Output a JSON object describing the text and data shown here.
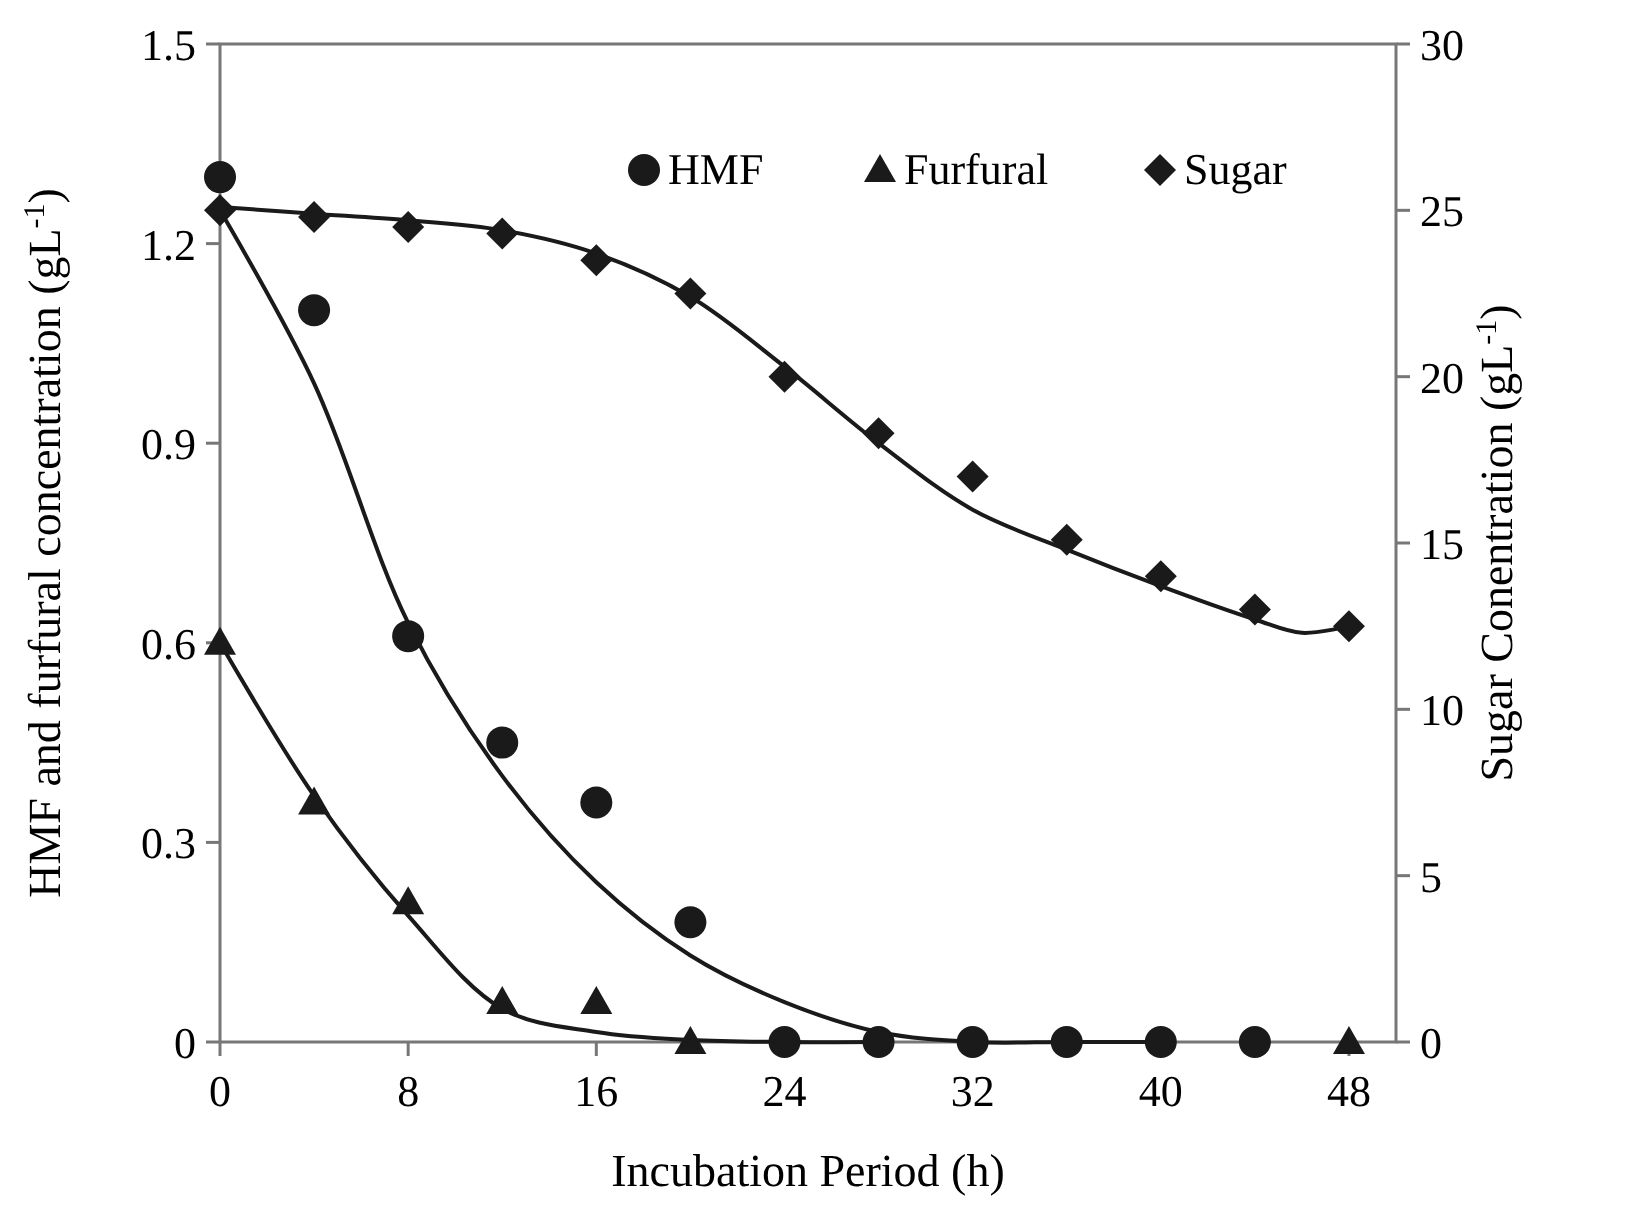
{
  "chart_data": {
    "type": "scatter",
    "xlabel": "Incubation Period (h)",
    "ylabel": "HMF and furfural concentration (gL$^{-1}$)",
    "y2label": "Sugar Conentration (gL$^{-1}$)",
    "x": [
      0,
      4,
      8,
      12,
      16,
      20,
      24,
      28,
      32,
      36,
      40,
      44,
      48
    ],
    "xlim": [
      0,
      50
    ],
    "xticks": [
      0,
      8,
      16,
      24,
      32,
      40,
      48
    ],
    "ylim": [
      0,
      1.5
    ],
    "yticks": [
      {
        "value": 0,
        "label": "0"
      },
      {
        "value": 0.3,
        "label": "0.3"
      },
      {
        "value": 0.6,
        "label": "0.6"
      },
      {
        "value": 0.9,
        "label": "0.9"
      },
      {
        "value": 1.2,
        "label": "1.2"
      },
      {
        "value": 1.5,
        "label": "1.5"
      }
    ],
    "y2lim": [
      0,
      30
    ],
    "y2ticks": [
      0,
      5,
      10,
      15,
      20,
      25,
      30
    ],
    "grid": false,
    "legend": "top right",
    "series": [
      {
        "name": "HMF",
        "marker": "circle",
        "color": "#1a1a1a",
        "values": [
          1.3,
          1.1,
          0.61,
          0.45,
          0.36,
          0.18,
          0,
          0,
          0,
          0,
          0,
          0,
          null
        ]
      },
      {
        "name": "Furfural",
        "marker": "triangle",
        "color": "#1a1a1a",
        "values": [
          0.6,
          0.36,
          0.21,
          0.06,
          0.06,
          0,
          null,
          null,
          null,
          null,
          null,
          null,
          0
        ]
      },
      {
        "name": "Sugar",
        "marker": "diamond",
        "axis": "y2",
        "color": "#1a1a1a",
        "values": [
          25,
          24.8,
          24.5,
          24.3,
          23.5,
          22.5,
          20,
          18.3,
          17,
          15.1,
          14,
          13,
          12.5
        ]
      },
      {
        "type": "line",
        "marker": "none",
        "color": "#1a1a1a",
        "x": [
          0,
          4,
          8,
          12,
          16,
          20,
          24,
          28,
          32,
          36,
          40
        ],
        "values": [
          1.25,
          0.99,
          0.63,
          0.4,
          0.24,
          0.13,
          0.06,
          0.015,
          0,
          0,
          0
        ]
      },
      {
        "type": "line",
        "marker": "none",
        "color": "#1a1a1a",
        "x": [
          0,
          4,
          8,
          12,
          16,
          20,
          24,
          28
        ],
        "values": [
          0.6,
          0.37,
          0.19,
          0.05,
          0.015,
          0.003,
          0,
          0
        ]
      },
      {
        "type": "line",
        "marker": "none",
        "axis": "y2",
        "color": "#1a1a1a",
        "x": [
          0,
          4,
          8,
          12,
          16,
          20,
          24,
          28,
          32,
          36,
          40,
          44,
          46,
          48
        ],
        "values": [
          25.1,
          24.9,
          24.7,
          24.4,
          23.7,
          22.4,
          20.3,
          18,
          16,
          14.8,
          13.7,
          12.7,
          12.3,
          12.5
        ]
      }
    ]
  }
}
